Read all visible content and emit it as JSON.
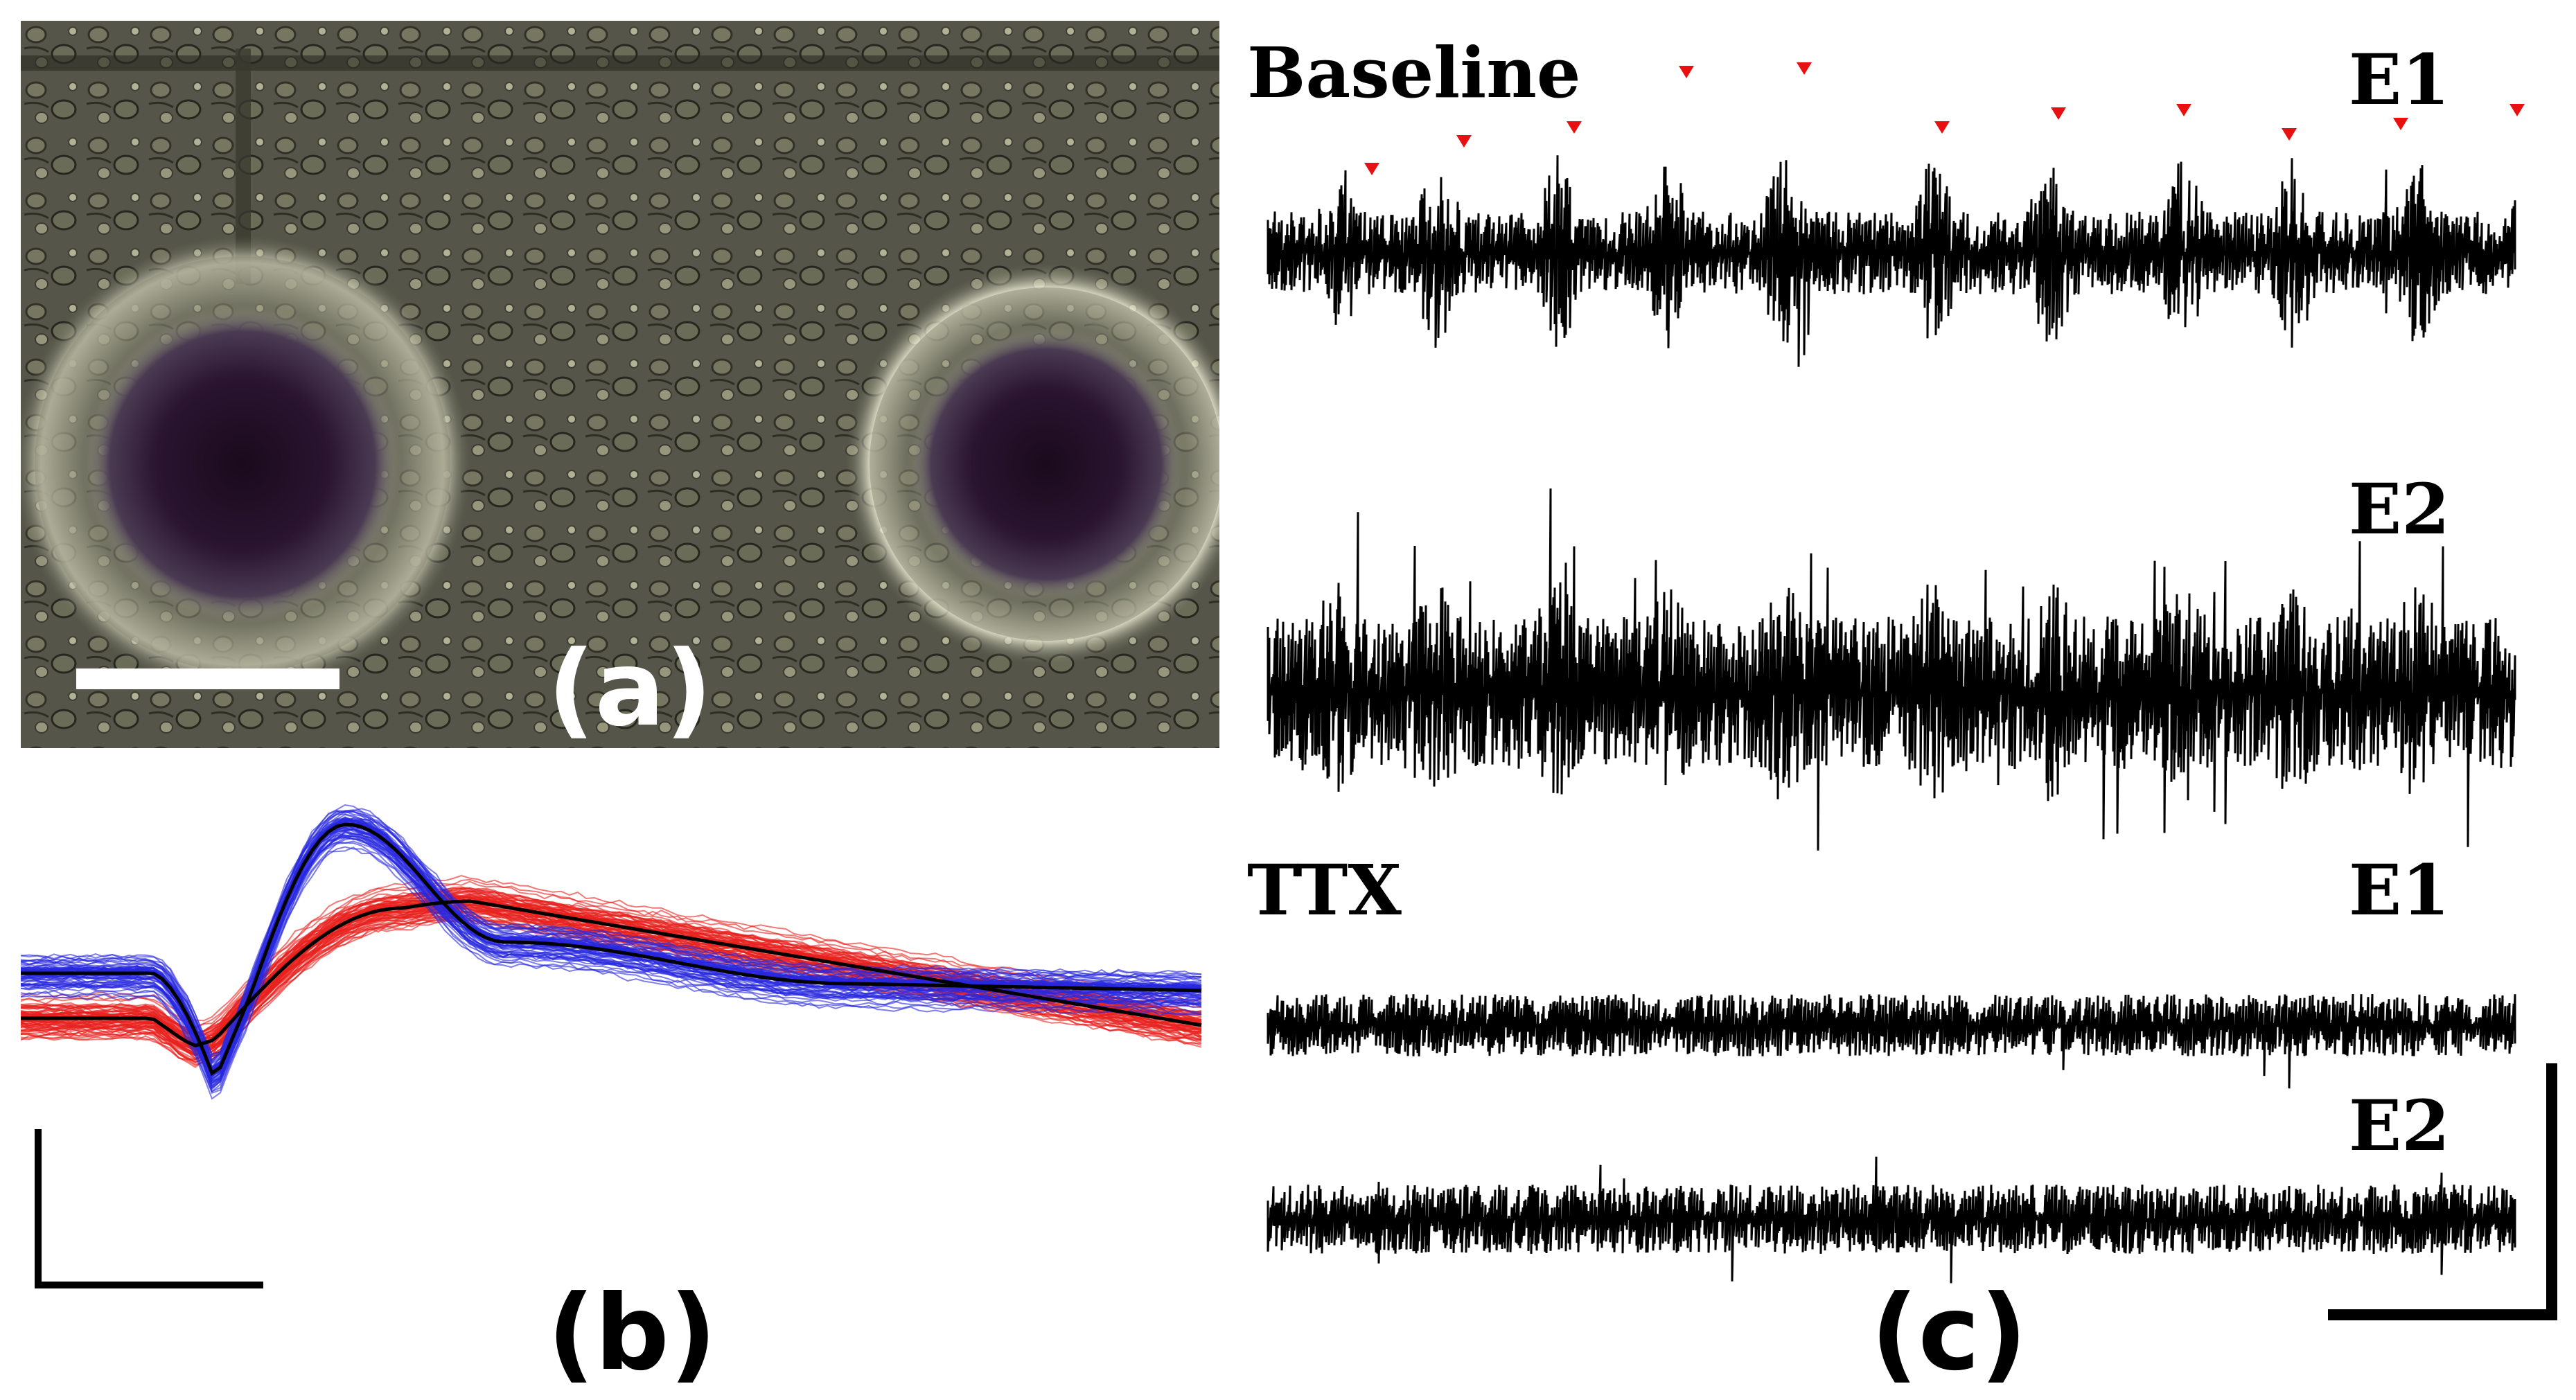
{
  "figure": {
    "panels": {
      "a": {
        "label": "(a)",
        "label_color": "#ffffff"
      },
      "b": {
        "label": "(b)",
        "label_color": "#000000",
        "series_colors": {
          "unit1": "#e8201c",
          "unit2": "#2828e0",
          "mean": "#000000"
        }
      },
      "c": {
        "label": "(c)",
        "label_color": "#000000"
      }
    },
    "traces": {
      "baseline": "Baseline",
      "ttx": "TTX",
      "e1_label": "E1",
      "e2_label": "E2",
      "e1_ttx_label": "E1",
      "e2_ttx_label": "E2",
      "marker_color": "#e81010"
    }
  }
}
